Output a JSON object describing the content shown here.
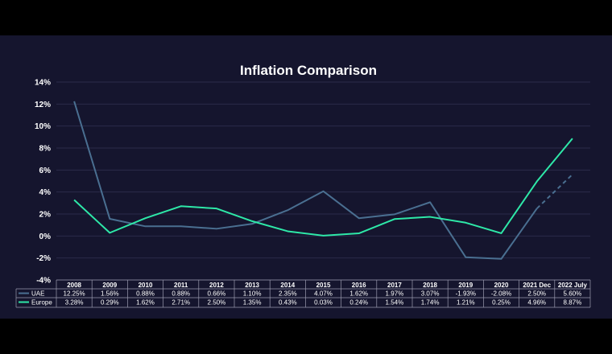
{
  "chart_data": {
    "type": "line",
    "title": "Inflation Comparison",
    "categories": [
      "2008",
      "2009",
      "2010",
      "2011",
      "2012",
      "2013",
      "2014",
      "2015",
      "2016",
      "2017",
      "2018",
      "2019",
      "2020",
      "2021 Dec",
      "2022 July"
    ],
    "ylim": [
      -4,
      14
    ],
    "yticks": [
      -4,
      -2,
      0,
      2,
      4,
      6,
      8,
      10,
      12,
      14
    ],
    "ytick_labels": [
      "-4%",
      "-2%",
      "0%",
      "2%",
      "4%",
      "6%",
      "8%",
      "10%",
      "12%",
      "14%"
    ],
    "grid": true,
    "legend": "data-table-left",
    "series": [
      {
        "name": "UAE",
        "color": "#4a6f91",
        "dashed_last_segment": true,
        "values": [
          12.25,
          1.56,
          0.88,
          0.88,
          0.66,
          1.1,
          2.35,
          4.07,
          1.62,
          1.97,
          3.07,
          -1.93,
          -2.08,
          2.5,
          5.6
        ],
        "labels": [
          "12.25%",
          "1.56%",
          "0.88%",
          "0.88%",
          "0.66%",
          "1.10%",
          "2.35%",
          "4.07%",
          "1.62%",
          "1.97%",
          "3.07%",
          "-1.93%",
          "-2.08%",
          "2.50%",
          "5.60%"
        ]
      },
      {
        "name": "Europe",
        "color": "#2ee8a8",
        "dashed_last_segment": false,
        "values": [
          3.28,
          0.29,
          1.62,
          2.71,
          2.5,
          1.35,
          0.43,
          0.03,
          0.24,
          1.54,
          1.74,
          1.21,
          0.25,
          4.96,
          8.87
        ],
        "labels": [
          "3.28%",
          "0.29%",
          "1.62%",
          "2.71%",
          "2.50%",
          "1.35%",
          "0.43%",
          "0.03%",
          "0.24%",
          "1.54%",
          "1.74%",
          "1.21%",
          "0.25%",
          "4.96%",
          "8.87%"
        ]
      }
    ]
  }
}
